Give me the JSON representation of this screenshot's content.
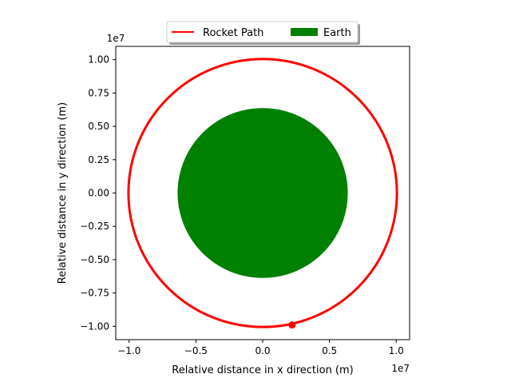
{
  "chart_data": {
    "type": "line",
    "title": "",
    "xlabel": "Relative distance in x direction (m)",
    "ylabel": "Relative distance in y direction (m)",
    "x_offset_label": "1e7",
    "y_offset_label": "1e7",
    "xlim": [
      -11000000.0,
      11000000.0
    ],
    "ylim": [
      -11000000.0,
      11000000.0
    ],
    "x_ticks": [
      -10000000.0,
      -5000000.0,
      0,
      5000000.0,
      10000000.0
    ],
    "x_tick_labels": [
      "−1.0",
      "−0.5",
      "0.0",
      "0.5",
      "1.0"
    ],
    "y_ticks": [
      -10000000.0,
      -7500000.0,
      -5000000.0,
      -2500000.0,
      0,
      2500000.0,
      5000000.0,
      7500000.0,
      10000000.0
    ],
    "y_tick_labels": [
      "−1.00",
      "−0.75",
      "−0.50",
      "−0.25",
      "0.00",
      "0.25",
      "0.50",
      "0.75",
      "1.00"
    ],
    "grid": false,
    "legend": {
      "placement": "top-center-outside",
      "entries": [
        {
          "label": "Rocket Path",
          "kind": "line",
          "color": "#ff0000"
        },
        {
          "label": "Earth",
          "kind": "patch",
          "color": "#008000"
        }
      ]
    },
    "series": [
      {
        "name": "Rocket Path",
        "shape": "circle",
        "center": [
          0,
          0
        ],
        "radius": 10050000.0,
        "color": "#ff0000"
      }
    ],
    "earth": {
      "name": "Earth",
      "center": [
        0,
        0
      ],
      "radius": 6371000.0,
      "color": "#008000"
    },
    "marker": {
      "x": 2200000.0,
      "y": -9900000.0,
      "color": "#ff0000"
    }
  }
}
